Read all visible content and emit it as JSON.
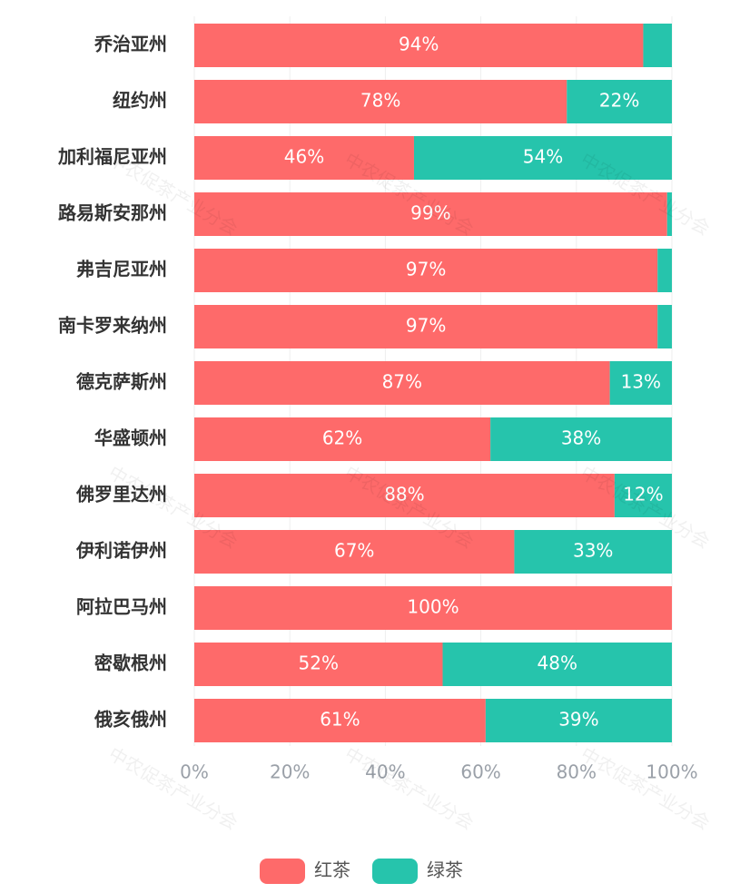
{
  "chart_data": {
    "type": "stacked-bar-horizontal",
    "watermark": "中农促茶产业分会",
    "categories": [
      "乔治亚州",
      "纽约州",
      "加利福尼亚州",
      "路易斯安那州",
      "弗吉尼亚州",
      "南卡罗来纳州",
      "德克萨斯州",
      "华盛顿州",
      "佛罗里达州",
      "伊利诺伊州",
      "阿拉巴马州",
      "密歇根州",
      "俄亥俄州"
    ],
    "series": [
      {
        "name": "红茶",
        "color": "#fe6a6a",
        "values": [
          94,
          78,
          46,
          99,
          97,
          97,
          87,
          62,
          88,
          67,
          100,
          52,
          61
        ],
        "value_labels": [
          "94%",
          "78%",
          "46%",
          "99%",
          "97%",
          "97%",
          "87%",
          "62%",
          "88%",
          "67%",
          "100%",
          "52%",
          "61%"
        ]
      },
      {
        "name": "绿茶",
        "color": "#26c4ac",
        "values": [
          6,
          22,
          54,
          1,
          3,
          3,
          13,
          38,
          12,
          33,
          0,
          48,
          39
        ],
        "value_labels": [
          null,
          "22%",
          "54%",
          null,
          null,
          null,
          "13%",
          "38%",
          "12%",
          "33%",
          null,
          "48%",
          "39%"
        ]
      }
    ],
    "xlim": [
      0,
      100
    ],
    "xticks": [
      {
        "value": 0,
        "label": "0%"
      },
      {
        "value": 20,
        "label": "20%"
      },
      {
        "value": 40,
        "label": "40%"
      },
      {
        "value": 60,
        "label": "60%"
      },
      {
        "value": 80,
        "label": "80%"
      },
      {
        "value": 100,
        "label": "100%"
      }
    ],
    "grid": true,
    "legend": "bottom"
  }
}
